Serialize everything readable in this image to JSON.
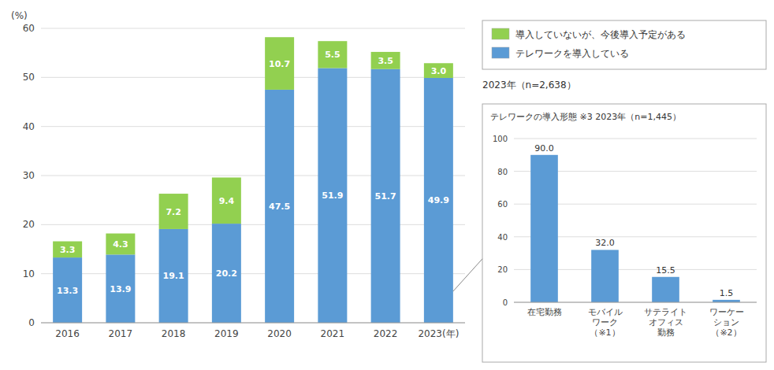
{
  "chart_data": [
    {
      "type": "bar",
      "stacked": true,
      "categories": [
        "2016",
        "2017",
        "2018",
        "2019",
        "2020",
        "2021",
        "2022",
        "2023(年)"
      ],
      "series": [
        {
          "name": "テレワークを導入している",
          "color": "#5B9BD5",
          "values": [
            13.3,
            13.9,
            19.1,
            20.2,
            47.5,
            51.9,
            51.7,
            49.9
          ]
        },
        {
          "name": "導入していないが、今後導入予定がある",
          "color": "#92D050",
          "values": [
            3.3,
            4.3,
            7.2,
            9.4,
            10.7,
            5.5,
            3.5,
            3.0
          ],
          "value_labels": [
            "3.3",
            "4.3",
            "7.2",
            "9.4",
            "10.7",
            "5.5",
            "3.5",
            "3.0"
          ]
        }
      ],
      "ylabel": "(%)",
      "ylim": [
        0,
        60
      ],
      "yticks": [
        0,
        10,
        20,
        30,
        40,
        50,
        60
      ],
      "grid": true,
      "data_labels": true,
      "legend": "right",
      "annotations": [
        "2023年（n=2,638）"
      ]
    },
    {
      "type": "bar",
      "title": "テレワークの導入形態  ※3    2023年（n=1,445）",
      "categories": [
        "在宅勤務",
        "モバイル\nワーク\n（※1）",
        "サテライト\nオフィス\n勤務",
        "ワーケー\nション\n（※2）"
      ],
      "values": [
        90.0,
        32.0,
        15.5,
        1.5
      ],
      "value_labels": [
        "90.0",
        "32.0",
        "15.5",
        "1.5"
      ],
      "color": "#5B9BD5",
      "ylim": [
        0,
        100
      ],
      "yticks": [
        0,
        20,
        40,
        60,
        80,
        100
      ],
      "grid": true,
      "data_labels": true
    }
  ]
}
